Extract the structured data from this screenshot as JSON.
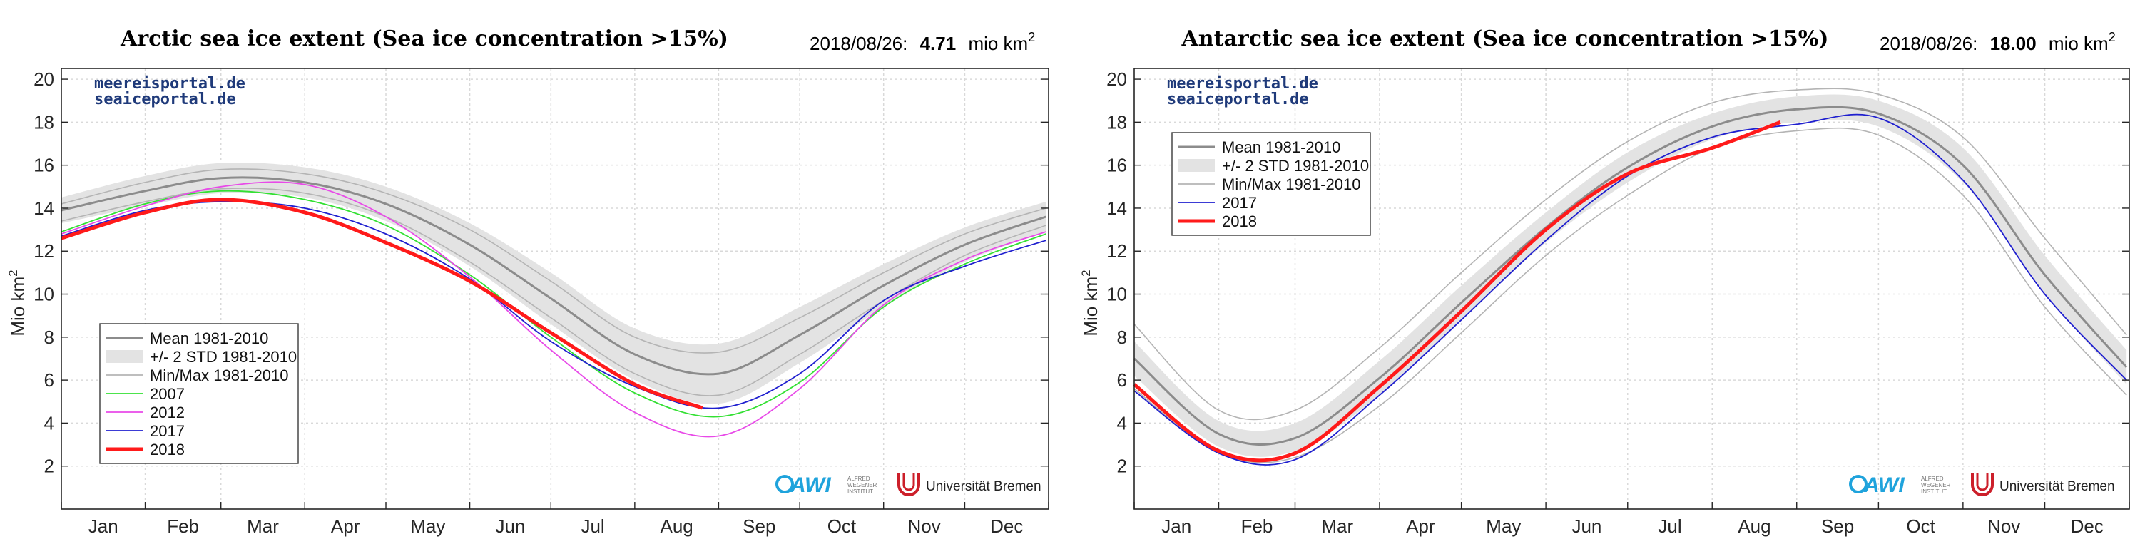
{
  "page": {
    "background": "#ffffff"
  },
  "colors": {
    "mean": "#8c8c8c",
    "std_band": "#e3e3e3",
    "minmax": "#b4b4b4",
    "y2007": "#33e033",
    "y2012": "#e84ae8",
    "y2017": "#1f1fcf",
    "y2018": "#ff1a1a",
    "watermark": "#1f3a7a",
    "awi": "#1fa3dc",
    "bremen": "#cc1f2a"
  },
  "panels": [
    {
      "title": "Arctic sea ice extent (Sea ice concentration >15%)",
      "date": "2018/08/26:",
      "value": "4.71",
      "unit": "mio km",
      "unit_sup": "2",
      "watermark": [
        "meereisportal.de",
        "seaiceportal.de"
      ],
      "logos": {
        "awi_text": "AWI",
        "awi_sub": [
          "ALFRED",
          "WEGENER",
          "INSTITUT"
        ],
        "bremen": "Universität Bremen"
      }
    },
    {
      "title": "Antarctic sea ice extent (Sea ice concentration >15%)",
      "date": "2018/08/26:",
      "value": "18.00",
      "unit": "mio km",
      "unit_sup": "2",
      "watermark": [
        "meereisportal.de",
        "seaiceportal.de"
      ],
      "logos": {
        "awi_text": "AWI",
        "awi_sub": [
          "ALFRED",
          "WEGENER",
          "INSTITUT"
        ],
        "bremen": "Universität Bremen"
      }
    }
  ],
  "chart_data": [
    {
      "type": "line",
      "title": "Arctic sea ice extent (Sea ice concentration >15%)",
      "ylabel": "Mio km",
      "ylabel_sup": "2",
      "ylim": [
        0,
        20.5
      ],
      "yticks": [
        2,
        4,
        6,
        8,
        10,
        12,
        14,
        16,
        18,
        20
      ],
      "xlim": [
        1,
        365
      ],
      "month_labels": [
        "Jan",
        "Feb",
        "Mar",
        "Apr",
        "May",
        "Jun",
        "Jul",
        "Aug",
        "Sep",
        "Oct",
        "Nov",
        "Dec"
      ],
      "grid": true,
      "legend_position": "lower-left",
      "legend": [
        {
          "label": "Mean 1981-2010",
          "key": "mean"
        },
        {
          "label": "+/- 2 STD 1981-2010",
          "key": "std"
        },
        {
          "label": "Min/Max 1981-2010",
          "key": "minmax"
        },
        {
          "label": "2007",
          "key": "y2007"
        },
        {
          "label": "2012",
          "key": "y2012"
        },
        {
          "label": "2017",
          "key": "y2017"
        },
        {
          "label": "2018",
          "key": "y2018"
        }
      ],
      "x": [
        1,
        32,
        60,
        91,
        121,
        152,
        182,
        213,
        244,
        274,
        305,
        335,
        365
      ],
      "mean": [
        13.9,
        14.8,
        15.4,
        15.2,
        14.2,
        12.3,
        9.8,
        7.2,
        6.3,
        8.1,
        10.4,
        12.3,
        13.6
      ],
      "std_upper": [
        14.5,
        15.5,
        16.1,
        15.9,
        15.0,
        13.3,
        11.0,
        8.4,
        7.7,
        9.4,
        11.4,
        13.1,
        14.3
      ],
      "std_lower": [
        13.3,
        14.1,
        14.7,
        14.5,
        13.4,
        11.3,
        8.6,
        6.0,
        4.9,
        6.8,
        9.4,
        11.5,
        12.9
      ],
      "max": [
        14.2,
        15.2,
        15.8,
        15.6,
        14.7,
        13.0,
        10.6,
        8.0,
        7.3,
        8.9,
        11.0,
        12.8,
        14.0
      ],
      "min": [
        13.4,
        14.3,
        14.9,
        14.7,
        13.6,
        11.5,
        8.9,
        6.3,
        5.3,
        7.2,
        9.7,
        11.8,
        13.2
      ],
      "series": [
        {
          "name": "2007",
          "key": "y2007",
          "x": [
            1,
            32,
            60,
            91,
            121,
            152,
            182,
            213,
            244,
            274,
            305,
            335,
            365
          ],
          "values": [
            12.9,
            14.2,
            14.8,
            14.4,
            13.2,
            10.9,
            8.0,
            5.4,
            4.3,
            5.9,
            9.4,
            11.4,
            12.8
          ]
        },
        {
          "name": "2012",
          "key": "y2012",
          "x": [
            1,
            32,
            60,
            91,
            121,
            152,
            182,
            213,
            244,
            274,
            305,
            335,
            365
          ],
          "values": [
            12.8,
            14.1,
            15.0,
            15.1,
            13.6,
            10.8,
            7.4,
            4.5,
            3.4,
            5.6,
            9.5,
            11.6,
            12.9
          ]
        },
        {
          "name": "2017",
          "key": "y2017",
          "x": [
            1,
            32,
            60,
            91,
            121,
            152,
            182,
            213,
            244,
            274,
            305,
            335,
            365
          ],
          "values": [
            12.7,
            13.9,
            14.3,
            14.0,
            12.8,
            10.7,
            7.8,
            5.7,
            4.7,
            6.3,
            9.7,
            11.3,
            12.5
          ]
        },
        {
          "name": "2018",
          "key": "y2018",
          "x": [
            1,
            32,
            60,
            91,
            121,
            152,
            182,
            213,
            238
          ],
          "values": [
            12.6,
            13.8,
            14.4,
            13.8,
            12.4,
            10.6,
            8.2,
            5.8,
            4.71
          ]
        }
      ]
    },
    {
      "type": "line",
      "title": "Antarctic sea ice extent (Sea ice concentration >15%)",
      "ylabel": "Mio km",
      "ylabel_sup": "2",
      "ylim": [
        0,
        20.5
      ],
      "yticks": [
        2,
        4,
        6,
        8,
        10,
        12,
        14,
        16,
        18,
        20
      ],
      "xlim": [
        1,
        365
      ],
      "month_labels": [
        "Jan",
        "Feb",
        "Mar",
        "Apr",
        "May",
        "Jun",
        "Jul",
        "Aug",
        "Sep",
        "Oct",
        "Nov",
        "Dec"
      ],
      "grid": true,
      "legend_position": "upper-left",
      "legend": [
        {
          "label": "Mean 1981-2010",
          "key": "mean"
        },
        {
          "label": "+/- 2 STD 1981-2010",
          "key": "std"
        },
        {
          "label": "Min/Max 1981-2010",
          "key": "minmax"
        },
        {
          "label": "2017",
          "key": "y2017"
        },
        {
          "label": "2018",
          "key": "y2018"
        }
      ],
      "x": [
        1,
        32,
        60,
        91,
        121,
        152,
        182,
        213,
        244,
        274,
        305,
        335,
        365
      ],
      "mean": [
        7.0,
        3.5,
        3.3,
        6.1,
        9.6,
        13.1,
        15.9,
        17.8,
        18.6,
        18.4,
        16.0,
        10.9,
        6.6
      ],
      "std_upper": [
        7.8,
        4.1,
        4.0,
        6.9,
        10.4,
        13.8,
        16.6,
        18.4,
        19.2,
        19.0,
        16.8,
        11.8,
        7.4
      ],
      "std_lower": [
        6.2,
        2.9,
        2.7,
        5.3,
        8.8,
        12.4,
        15.2,
        17.2,
        18.0,
        17.8,
        15.2,
        10.0,
        5.8
      ],
      "max": [
        8.6,
        4.6,
        4.6,
        7.5,
        11.0,
        14.4,
        17.1,
        18.9,
        19.5,
        19.3,
        17.3,
        12.6,
        8.1
      ],
      "min": [
        5.6,
        2.6,
        2.4,
        4.8,
        8.2,
        11.8,
        14.6,
        16.8,
        17.6,
        17.4,
        14.6,
        9.4,
        5.3
      ],
      "series": [
        {
          "name": "2017",
          "key": "y2017",
          "x": [
            1,
            32,
            60,
            91,
            121,
            152,
            182,
            213,
            244,
            274,
            305,
            335,
            365
          ],
          "values": [
            5.5,
            2.6,
            2.3,
            5.3,
            8.8,
            12.5,
            15.5,
            17.3,
            17.9,
            18.2,
            15.3,
            10.0,
            6.0
          ]
        },
        {
          "name": "2018",
          "key": "y2018",
          "x": [
            1,
            32,
            60,
            91,
            121,
            152,
            182,
            213,
            238
          ],
          "values": [
            5.8,
            2.7,
            2.6,
            5.7,
            9.2,
            13.0,
            15.6,
            16.8,
            18.0
          ]
        }
      ]
    }
  ]
}
